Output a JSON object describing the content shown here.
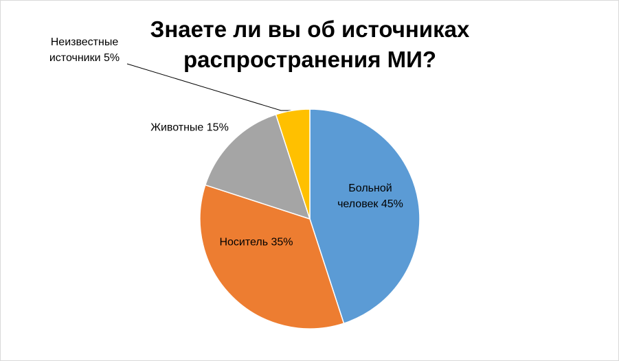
{
  "chart_data": {
    "type": "pie",
    "title": "Знаете ли вы об источниках распространения МИ?",
    "categories": [
      "Больной человек",
      "Носитель",
      "Животные",
      "Неизвестные источники"
    ],
    "values": [
      45,
      35,
      15,
      5
    ],
    "value_labels": [
      "45%",
      "35%",
      "15%",
      "5%"
    ],
    "colors": [
      "#5b9bd5",
      "#ed7d31",
      "#a5a5a5",
      "#ffc000"
    ]
  }
}
